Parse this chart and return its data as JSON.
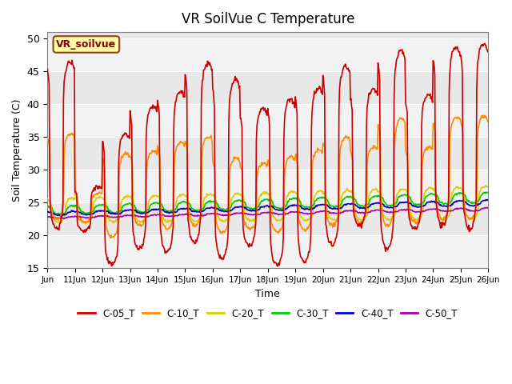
{
  "title": "VR SoilVue C Temperature",
  "xlabel": "Time",
  "ylabel": "Soil Temperature (C)",
  "ylim": [
    15,
    51
  ],
  "yticks": [
    15,
    20,
    25,
    30,
    35,
    40,
    45,
    50
  ],
  "annotation_label": "VR_soilvue",
  "bg_color": "#e8e8e8",
  "bg_band_light": "#f2f2f2",
  "lines": {
    "C-05_T": {
      "color": "#cc0000",
      "lw": 1.2
    },
    "C-10_T": {
      "color": "#ff8c00",
      "lw": 1.2
    },
    "C-20_T": {
      "color": "#ddcc00",
      "lw": 1.2
    },
    "C-30_T": {
      "color": "#00cc00",
      "lw": 1.2
    },
    "C-40_T": {
      "color": "#0000cc",
      "lw": 1.2
    },
    "C-50_T": {
      "color": "#aa00aa",
      "lw": 1.2
    }
  },
  "peaks_05": [
    46.5,
    27.3,
    35.5,
    39.8,
    42.0,
    46.2,
    43.8,
    39.4,
    40.8,
    42.5,
    45.8,
    42.3,
    48.2,
    41.5,
    48.6,
    49.2
  ],
  "mins_05": [
    21.0,
    20.8,
    15.5,
    18.0,
    17.5,
    19.0,
    16.5,
    18.5,
    15.5,
    16.0,
    18.5,
    21.5,
    18.0,
    21.0,
    21.5,
    21.0
  ],
  "peaks_10": [
    35.5,
    26.5,
    32.5,
    32.8,
    34.2,
    35.0,
    31.8,
    31.0,
    32.0,
    33.0,
    35.0,
    33.5,
    37.8,
    33.5,
    38.0,
    38.2
  ],
  "mins_10": [
    22.5,
    22.0,
    19.8,
    21.5,
    21.0,
    21.5,
    20.5,
    21.0,
    20.5,
    20.8,
    21.5,
    22.0,
    21.5,
    22.0,
    22.5,
    22.5
  ]
}
